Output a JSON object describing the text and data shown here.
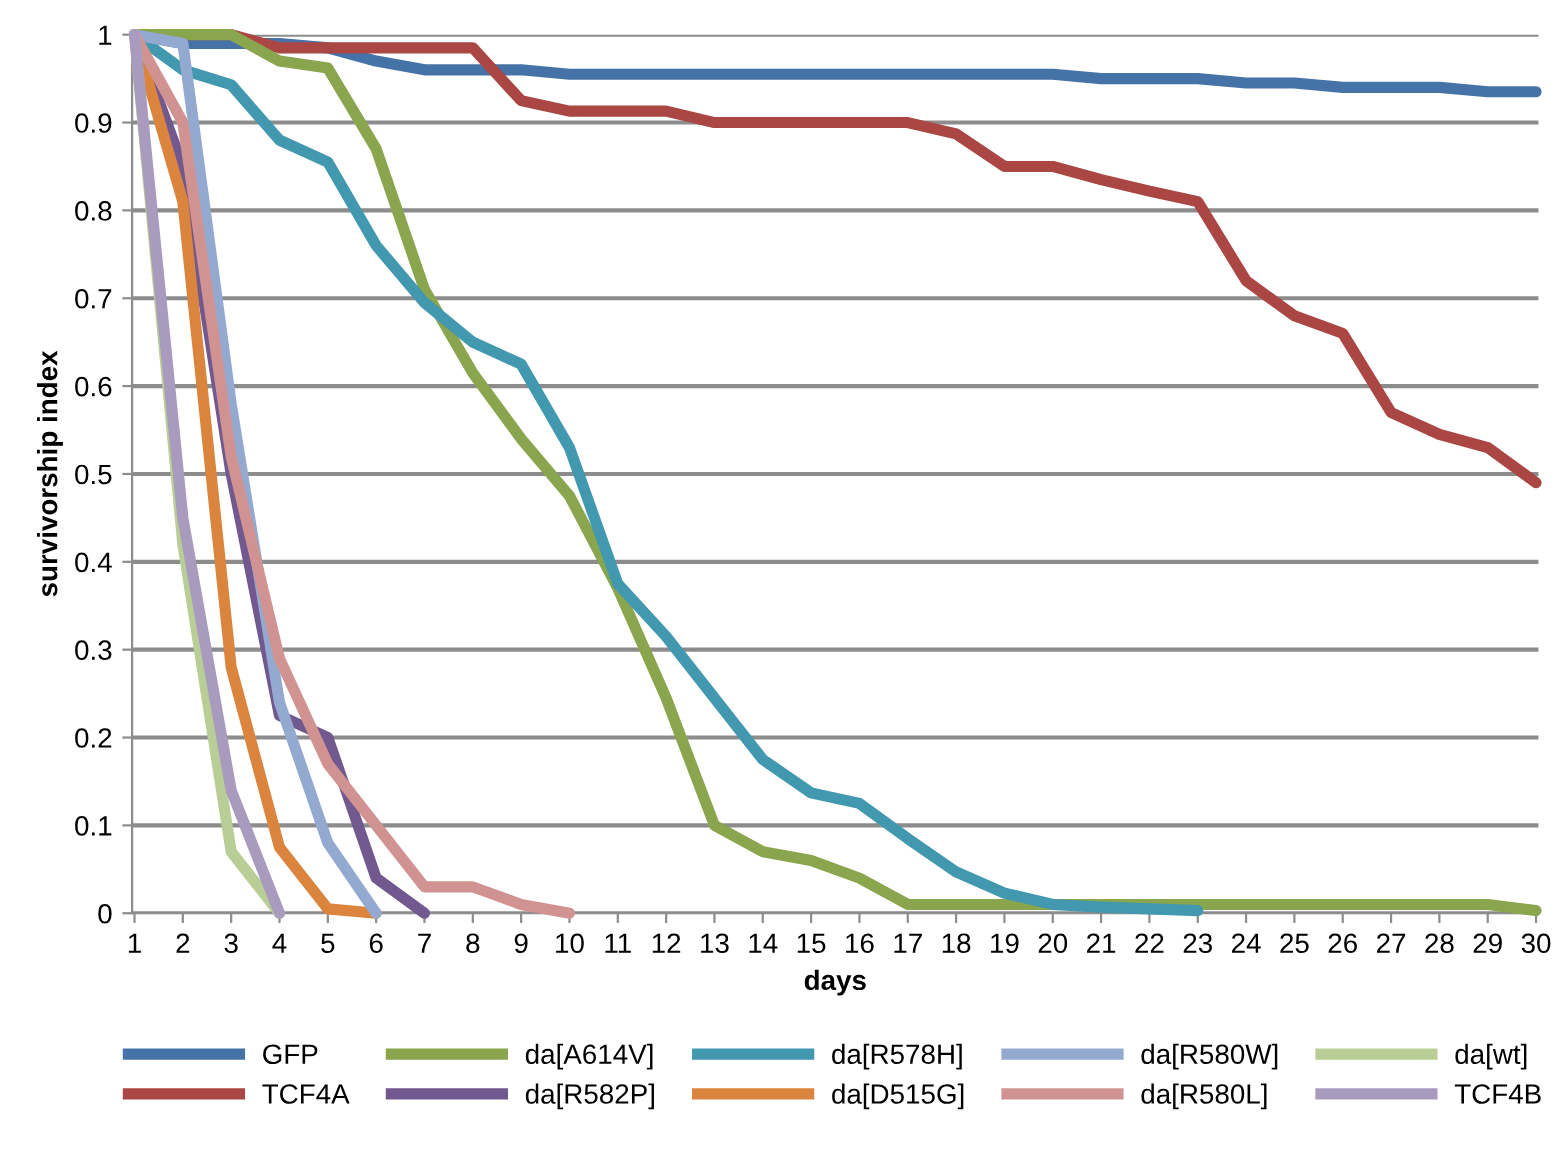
{
  "chart_data": {
    "type": "line",
    "xlabel": "days",
    "ylabel": "survivorship index",
    "categories": [
      "1",
      "2",
      "3",
      "4",
      "5",
      "6",
      "7",
      "8",
      "9",
      "10",
      "11",
      "12",
      "13",
      "14",
      "15",
      "16",
      "17",
      "18",
      "19",
      "20",
      "21",
      "22",
      "23",
      "24",
      "25",
      "26",
      "27",
      "28",
      "29",
      "30"
    ],
    "ylim": [
      0,
      1
    ],
    "yticks": [
      0,
      0.1,
      0.2,
      0.3,
      0.4,
      0.5,
      0.6,
      0.7,
      0.8,
      0.9,
      1
    ],
    "grid": "y",
    "legend": "bottom",
    "marker": "none",
    "line_style": "solid",
    "series": [
      {
        "name": "GFP",
        "color": "#4572a7",
        "values": [
          1,
          0.99,
          0.99,
          0.99,
          0.985,
          0.97,
          0.96,
          0.96,
          0.96,
          0.955,
          0.955,
          0.955,
          0.955,
          0.955,
          0.955,
          0.955,
          0.955,
          0.955,
          0.955,
          0.955,
          0.95,
          0.95,
          0.95,
          0.945,
          0.945,
          0.94,
          0.94,
          0.94,
          0.935,
          0.935
        ]
      },
      {
        "name": "TCF4A",
        "color": "#aa4643",
        "values": [
          1,
          1,
          1,
          0.985,
          0.985,
          0.985,
          0.985,
          0.985,
          0.925,
          0.913,
          0.913,
          0.913,
          0.9,
          0.9,
          0.9,
          0.9,
          0.9,
          0.887,
          0.85,
          0.85,
          0.835,
          0.822,
          0.81,
          0.72,
          0.68,
          0.66,
          0.57,
          0.545,
          0.53,
          0.49
        ]
      },
      {
        "name": "da[A614V]",
        "color": "#89a54e",
        "values": [
          1,
          1,
          1,
          0.97,
          0.962,
          0.87,
          0.71,
          0.615,
          0.54,
          0.475,
          0.37,
          0.245,
          0.1,
          0.07,
          0.06,
          0.04,
          0.01,
          0.01,
          0.01,
          0.01,
          0.01,
          0.01,
          0.01,
          0.01,
          0.01,
          0.01,
          0.01,
          0.01,
          0.01,
          0.003
        ]
      },
      {
        "name": "da[R582P]",
        "color": "#71588f",
        "values": [
          1,
          0.85,
          0.5,
          0.225,
          0.2,
          0.04,
          0,
          null,
          null,
          null,
          null,
          null,
          null,
          null,
          null,
          null,
          null,
          null,
          null,
          null,
          null,
          null,
          null,
          null,
          null,
          null,
          null,
          null,
          null,
          null
        ]
      },
      {
        "name": "da[R578H]",
        "color": "#4198af",
        "values": [
          1,
          0.96,
          0.943,
          0.88,
          0.855,
          0.76,
          0.695,
          0.65,
          0.625,
          0.53,
          0.375,
          0.315,
          0.245,
          0.175,
          0.137,
          0.125,
          0.085,
          0.047,
          0.023,
          0.01,
          0.007,
          0.005,
          0.003,
          null,
          null,
          null,
          null,
          null,
          null,
          null
        ]
      },
      {
        "name": "da[D515G]",
        "color": "#db843d",
        "values": [
          1,
          0.81,
          0.28,
          0.075,
          0.005,
          0,
          null,
          null,
          null,
          null,
          null,
          null,
          null,
          null,
          null,
          null,
          null,
          null,
          null,
          null,
          null,
          null,
          null,
          null,
          null,
          null,
          null,
          null,
          null,
          null
        ]
      },
      {
        "name": "da[R580W]",
        "color": "#93a9cf",
        "values": [
          1,
          0.99,
          0.58,
          0.24,
          0.08,
          0,
          null,
          null,
          null,
          null,
          null,
          null,
          null,
          null,
          null,
          null,
          null,
          null,
          null,
          null,
          null,
          null,
          null,
          null,
          null,
          null,
          null,
          null,
          null,
          null
        ]
      },
      {
        "name": "da[R580L]",
        "color": "#d19392",
        "values": [
          1,
          0.9,
          0.52,
          0.29,
          0.17,
          0.1,
          0.03,
          0.03,
          0.01,
          0,
          null,
          null,
          null,
          null,
          null,
          null,
          null,
          null,
          null,
          null,
          null,
          null,
          null,
          null,
          null,
          null,
          null,
          null,
          null,
          null
        ]
      },
      {
        "name": "da[wt]",
        "color": "#b9cd96",
        "values": [
          1,
          0.42,
          0.07,
          0,
          null,
          null,
          null,
          null,
          null,
          null,
          null,
          null,
          null,
          null,
          null,
          null,
          null,
          null,
          null,
          null,
          null,
          null,
          null,
          null,
          null,
          null,
          null,
          null,
          null,
          null
        ]
      },
      {
        "name": "TCF4B",
        "color": "#a99bbd",
        "values": [
          1,
          0.45,
          0.14,
          0,
          null,
          null,
          null,
          null,
          null,
          null,
          null,
          null,
          null,
          null,
          null,
          null,
          null,
          null,
          null,
          null,
          null,
          null,
          null,
          null,
          null,
          null,
          null,
          null,
          null,
          null
        ]
      }
    ]
  }
}
